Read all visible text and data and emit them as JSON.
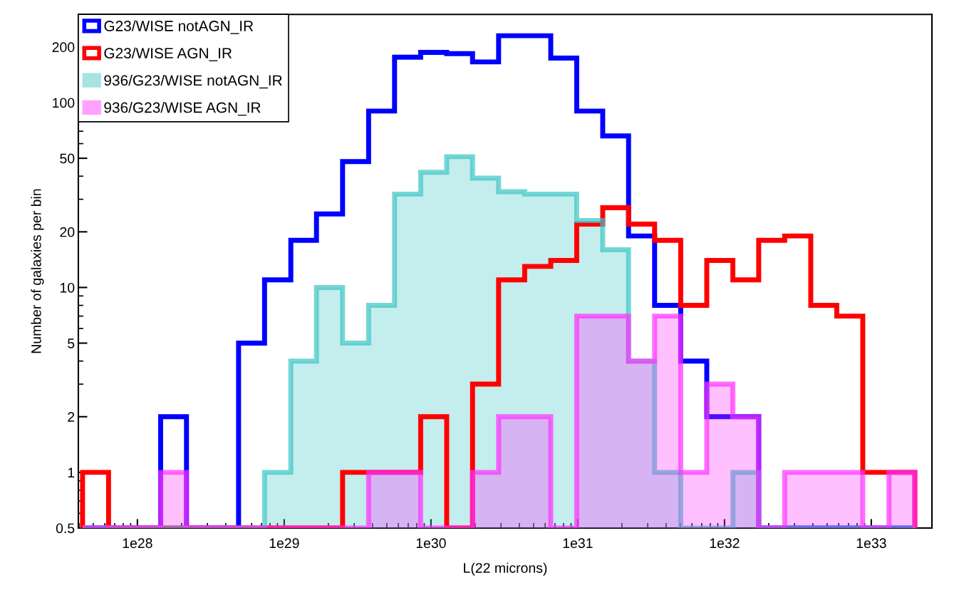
{
  "chart_data": {
    "type": "histogram",
    "xlabel": "L(22 microns)",
    "ylabel": "Number of galaxies per bin",
    "bins": [
      4.23e+27,
      6.36e+27,
      9.56e+27,
      1.44e+28,
      2.16e+28,
      3.25e+28,
      4.89e+28,
      7.35e+28,
      1.11e+29,
      1.66e+29,
      2.5e+29,
      3.76e+29,
      5.65e+29,
      8.51e+29,
      1.28e+30,
      1.92e+30,
      2.89e+30,
      4.35e+30,
      6.55e+30,
      9.84e+30,
      1.48e+31,
      2.22e+31,
      3.34e+31,
      5.03e+31,
      7.57e+31,
      1.14e+32,
      1.71e+32,
      2.57e+32,
      3.87e+32,
      5.82e+32,
      8.75e+32,
      1.32e+33,
      1.98e+33
    ],
    "series": [
      {
        "name": "G23/WISE notAGN_IR",
        "color": "#0000ff",
        "values": [
          null,
          null,
          null,
          2,
          null,
          null,
          5,
          11,
          18,
          25,
          48,
          90,
          176,
          187,
          184,
          166,
          230,
          230,
          174,
          90,
          66,
          19,
          8,
          4,
          2,
          2,
          null,
          null,
          null,
          null,
          null,
          null
        ]
      },
      {
        "name": "G23/WISE AGN_IR",
        "color": "#ff0000",
        "values": [
          1,
          null,
          null,
          null,
          null,
          null,
          null,
          null,
          null,
          null,
          1,
          1,
          1,
          2,
          null,
          3,
          11,
          13,
          14,
          22,
          27,
          22,
          18,
          8,
          14,
          11,
          18,
          19,
          8,
          7,
          1,
          1
        ]
      },
      {
        "name": "936/G23/WISE notAGN_IR",
        "type": "histogram",
        "color": "#3cc4c4",
        "values": [
          null,
          null,
          null,
          null,
          null,
          null,
          null,
          1,
          4,
          10,
          5,
          8,
          32,
          42,
          51,
          39,
          33,
          32,
          32,
          23,
          16,
          4,
          1,
          null,
          null,
          1,
          null,
          null,
          null,
          null,
          null,
          null
        ]
      },
      {
        "name": "936/G23/WISE AGN_IR",
        "type": "histogram",
        "color": "#ff30ff",
        "values": [
          null,
          null,
          null,
          1,
          null,
          null,
          null,
          null,
          null,
          null,
          null,
          1,
          1,
          null,
          null,
          1,
          2,
          2,
          null,
          7,
          7,
          4,
          7,
          1,
          3,
          2,
          null,
          1,
          1,
          1,
          null,
          1
        ]
      }
    ],
    "log": "xy",
    "xlim": [
      3.96e+27,
      2.59e+33
    ],
    "xticks": [
      {
        "value": 1e+28,
        "label": "1e28"
      },
      {
        "value": 1e+29,
        "label": "1e29"
      },
      {
        "value": 1e+30,
        "label": "1e30"
      },
      {
        "value": 1e+31,
        "label": "1e31"
      },
      {
        "value": 1e+32,
        "label": "1e32"
      },
      {
        "value": 1e+33,
        "label": "1e33"
      }
    ],
    "ylim": [
      0.5,
      300
    ],
    "yticks": [
      0.5,
      1,
      2,
      5,
      10,
      20,
      50,
      100,
      200
    ],
    "grid": false,
    "legend": "top left"
  }
}
